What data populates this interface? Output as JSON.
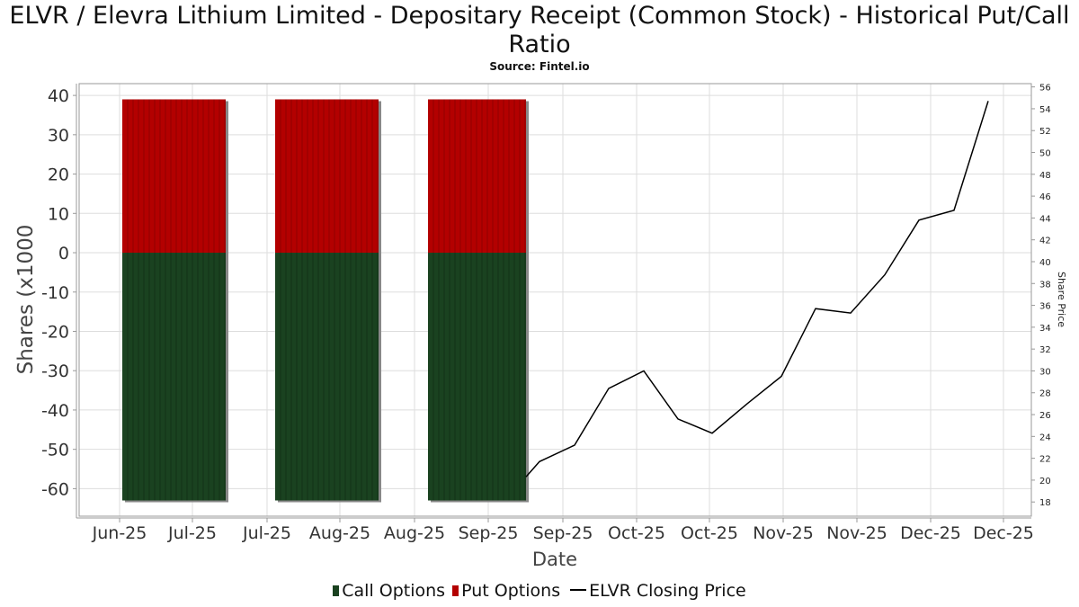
{
  "title": "ELVR / Elevra Lithium Limited - Depositary Receipt (Common Stock) - Historical Put/Call Ratio",
  "subtitle": "Source: Fintel.io",
  "colors": {
    "call": "#1a4220",
    "put": "#b30000",
    "line": "#000000",
    "grid": "#dddddd",
    "shadow": "#888888"
  },
  "legend": {
    "call": "Call Options",
    "put": "Put Options",
    "line": "ELVR Closing Price"
  },
  "chart_data": {
    "type": "bar",
    "xlabel": "Date",
    "ylabel": "Shares (x1000",
    "y2label": "Share Price",
    "ylim": [
      -67,
      43
    ],
    "y2lim": [
      16.7,
      56.3
    ],
    "yticks": [
      40,
      30,
      20,
      10,
      0,
      -10,
      -20,
      -30,
      -40,
      -50,
      -60
    ],
    "y2ticks": [
      56,
      54,
      52,
      50,
      48,
      46,
      44,
      42,
      40,
      38,
      36,
      34,
      32,
      30,
      28,
      26,
      24,
      22,
      20,
      18
    ],
    "xticks": [
      "Jun-25",
      "Jul-25",
      "Jul-25",
      "Aug-25",
      "Aug-25",
      "Sep-25",
      "Sep-25",
      "Oct-25",
      "Oct-25",
      "Nov-25",
      "Nov-25",
      "Dec-25",
      "Dec-25"
    ],
    "grid": true,
    "legend_position": "bottom",
    "bar_groups": [
      {
        "period": "Jun-25 to Jul-25",
        "put": 39,
        "call": -63
      },
      {
        "period": "Jul-25 to Aug-25",
        "put": 39,
        "call": -63
      },
      {
        "period": "Aug-25 to Sep-25",
        "put": 39,
        "call": -63
      }
    ],
    "series": [
      {
        "name": "ELVR Closing Price",
        "points": [
          {
            "date": "Sep-25",
            "price": 20.3
          },
          {
            "date": "Sep-25",
            "price": 21.7
          },
          {
            "date": "Sep-25",
            "price": 23.2
          },
          {
            "date": "Oct-25",
            "price": 28.4
          },
          {
            "date": "Oct-25",
            "price": 30.0
          },
          {
            "date": "Oct-25",
            "price": 25.6
          },
          {
            "date": "Oct-25",
            "price": 24.3
          },
          {
            "date": "Nov-25",
            "price": 27.0
          },
          {
            "date": "Nov-25",
            "price": 29.5
          },
          {
            "date": "Nov-25",
            "price": 35.7
          },
          {
            "date": "Nov-25",
            "price": 35.3
          },
          {
            "date": "Nov-25",
            "price": 38.8
          },
          {
            "date": "Dec-25",
            "price": 43.8
          },
          {
            "date": "Dec-25",
            "price": 44.7
          },
          {
            "date": "Dec-25",
            "price": 54.7
          }
        ]
      }
    ]
  }
}
